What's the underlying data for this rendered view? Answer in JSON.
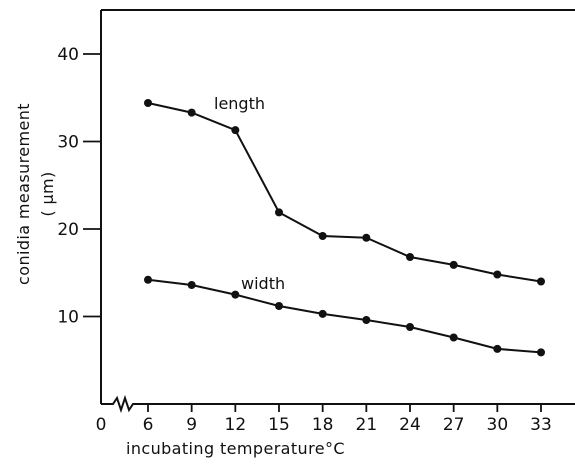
{
  "chart_data": {
    "type": "line",
    "xlabel": "incubating temperature°C",
    "ylabel_line1": "conidia measurement",
    "ylabel_line2": "( μm)",
    "x_ticks": [
      0,
      6,
      9,
      12,
      15,
      18,
      21,
      24,
      27,
      30,
      33
    ],
    "y_ticks": [
      10,
      20,
      30,
      40
    ],
    "xlim": [
      6,
      33
    ],
    "ylim": [
      0,
      45
    ],
    "axis_break": true,
    "series": [
      {
        "name": "length",
        "points": [
          {
            "x": 6,
            "y": 34.4
          },
          {
            "x": 9,
            "y": 33.3
          },
          {
            "x": 12,
            "y": 31.3
          },
          {
            "x": 15,
            "y": 21.9
          },
          {
            "x": 18,
            "y": 19.2
          },
          {
            "x": 21,
            "y": 19.0
          },
          {
            "x": 24,
            "y": 16.8
          },
          {
            "x": 27,
            "y": 15.9
          },
          {
            "x": 30,
            "y": 14.8
          },
          {
            "x": 33,
            "y": 14.0
          }
        ]
      },
      {
        "name": "width",
        "points": [
          {
            "x": 6,
            "y": 14.2
          },
          {
            "x": 9,
            "y": 13.6
          },
          {
            "x": 12,
            "y": 12.5
          },
          {
            "x": 15,
            "y": 11.2
          },
          {
            "x": 18,
            "y": 10.3
          },
          {
            "x": 21,
            "y": 9.6
          },
          {
            "x": 24,
            "y": 8.8
          },
          {
            "x": 27,
            "y": 7.6
          },
          {
            "x": 30,
            "y": 6.3
          },
          {
            "x": 33,
            "y": 5.9
          }
        ]
      }
    ]
  }
}
